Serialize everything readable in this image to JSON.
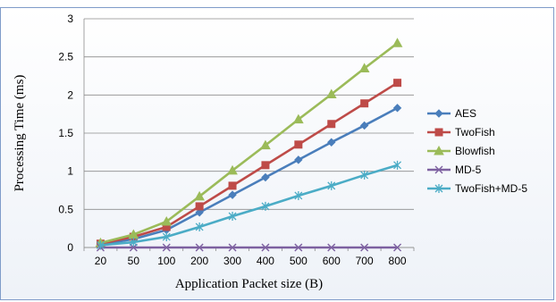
{
  "chart_data": {
    "type": "line",
    "title": "",
    "xlabel": "Application Packet size (B)",
    "ylabel": "Processing Time (ms)",
    "categories": [
      "20",
      "50",
      "100",
      "200",
      "300",
      "400",
      "500",
      "600",
      "700",
      "800"
    ],
    "ylim": [
      0,
      3
    ],
    "yticks": [
      0,
      0.5,
      1,
      1.5,
      2,
      2.5,
      3
    ],
    "ytick_labels": [
      "0",
      "0.5",
      "1",
      "1.5",
      "2",
      "2.5",
      "3"
    ],
    "grid": true,
    "legend_position": "right",
    "series": [
      {
        "name": "AES",
        "color": "#4a7ebb",
        "marker": "diamond",
        "values": [
          0.04,
          0.11,
          0.23,
          0.46,
          0.69,
          0.92,
          1.15,
          1.38,
          1.6,
          1.83
        ]
      },
      {
        "name": "TwoFish",
        "color": "#be4b48",
        "marker": "square",
        "values": [
          0.05,
          0.14,
          0.27,
          0.54,
          0.81,
          1.08,
          1.35,
          1.62,
          1.89,
          2.16
        ]
      },
      {
        "name": "Blowfish",
        "color": "#9bbb59",
        "marker": "triangle",
        "values": [
          0.06,
          0.17,
          0.34,
          0.67,
          1.01,
          1.34,
          1.68,
          2.01,
          2.35,
          2.68
        ]
      },
      {
        "name": "MD-5",
        "color": "#7d60a0",
        "marker": "x",
        "values": [
          0,
          0,
          0,
          0,
          0,
          0,
          0,
          0,
          0,
          0
        ]
      },
      {
        "name": "TwoFish+MD-5",
        "color": "#4bacc6",
        "marker": "star",
        "values": [
          0.03,
          0.07,
          0.14,
          0.27,
          0.41,
          0.54,
          0.68,
          0.81,
          0.95,
          1.08
        ]
      }
    ]
  }
}
